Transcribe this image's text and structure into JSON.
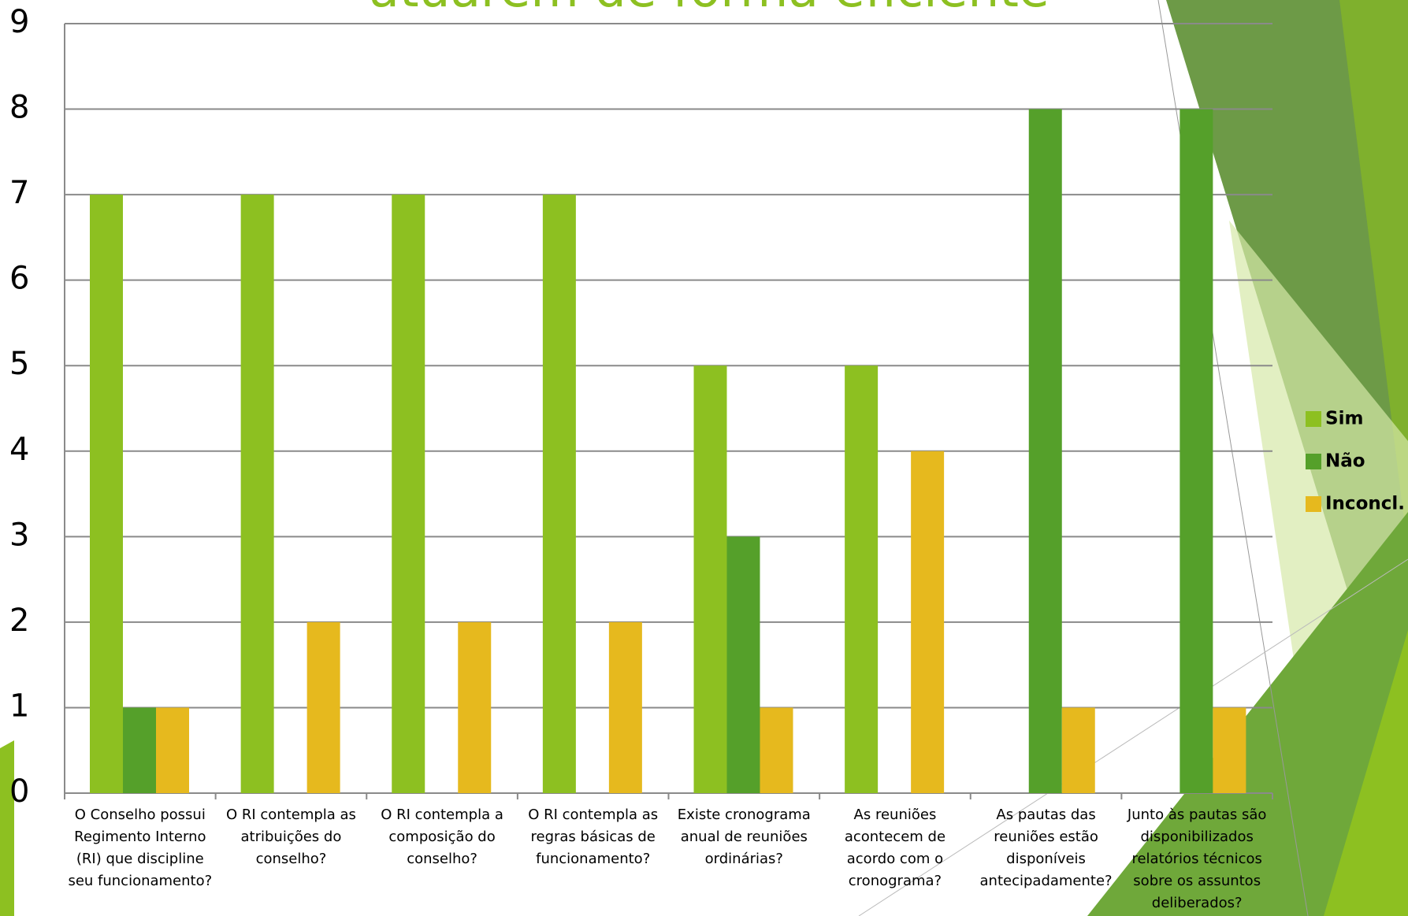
{
  "chart_data": {
    "type": "bar",
    "title": "atuarem de forma eficiente",
    "categories": [
      "O Conselho possui Regimento Interno (RI) que discipline seu funcionamento?",
      "O RI contempla as atribuições do conselho?",
      "O RI contempla a composição do conselho?",
      "O RI contempla as regras básicas de funcionamento?",
      "Existe cronograma anual de reuniões ordinárias?",
      "As reuniões acontecem de acordo com o cronograma?",
      "As pautas das reuniões estão disponíveis antecipadamente?",
      "Junto às pautas são disponibilizados relatórios técnicos sobre os assuntos deliberados?"
    ],
    "series": [
      {
        "name": "Sim",
        "color": "#8dc021",
        "values": [
          7,
          7,
          7,
          7,
          5,
          5,
          null,
          null
        ]
      },
      {
        "name": "Não",
        "color": "#55a02a",
        "values": [
          1,
          null,
          null,
          null,
          3,
          null,
          8,
          8
        ]
      },
      {
        "name": "Inconcl.",
        "color": "#e6b91e",
        "values": [
          1,
          2,
          2,
          2,
          1,
          4,
          1,
          1
        ]
      }
    ],
    "ylim": [
      0,
      9
    ],
    "yticks": [
      0,
      1,
      2,
      3,
      4,
      5,
      6,
      7,
      8,
      9
    ],
    "grid": true,
    "legend": "right"
  }
}
